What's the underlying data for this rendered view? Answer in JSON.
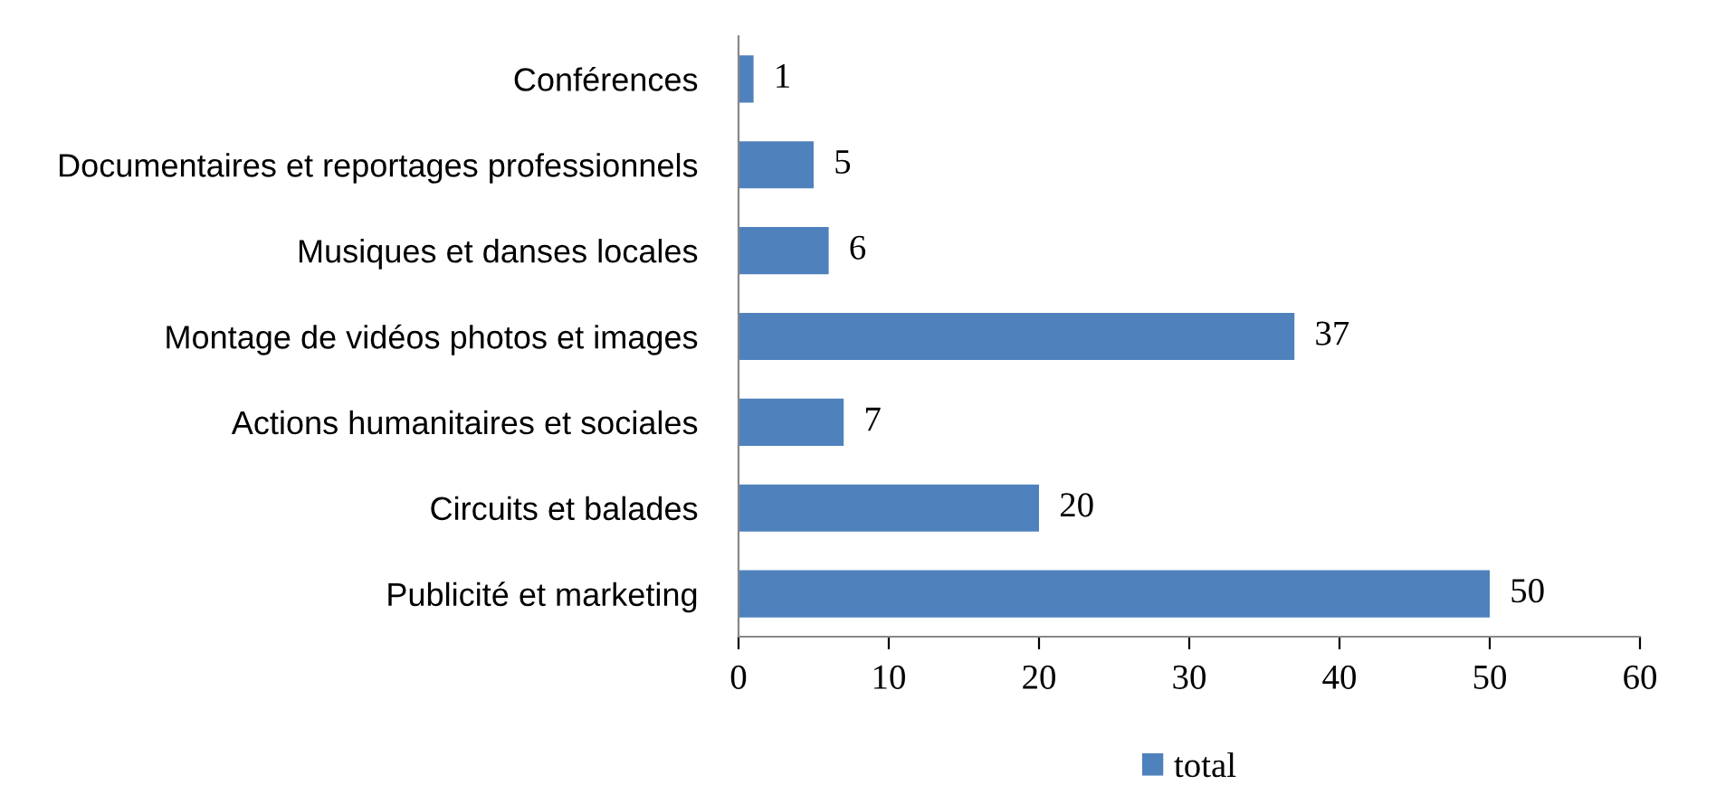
{
  "chart_data": {
    "type": "bar",
    "orientation": "horizontal",
    "categories": [
      "Conférences",
      "Documentaires et reportages professionnels",
      "Musiques et danses locales",
      "Montage de vidéos photos et images",
      "Actions humanitaires et sociales",
      "Circuits et balades",
      "Publicité et marketing"
    ],
    "series": [
      {
        "name": "total",
        "color": "#4f81bd",
        "values": [
          1,
          5,
          6,
          37,
          7,
          20,
          50
        ]
      }
    ],
    "xlim": [
      0,
      60
    ],
    "xticks": [
      0,
      10,
      20,
      30,
      40,
      50,
      60
    ],
    "data_labels": true,
    "legend": "bottom",
    "grid": false
  }
}
